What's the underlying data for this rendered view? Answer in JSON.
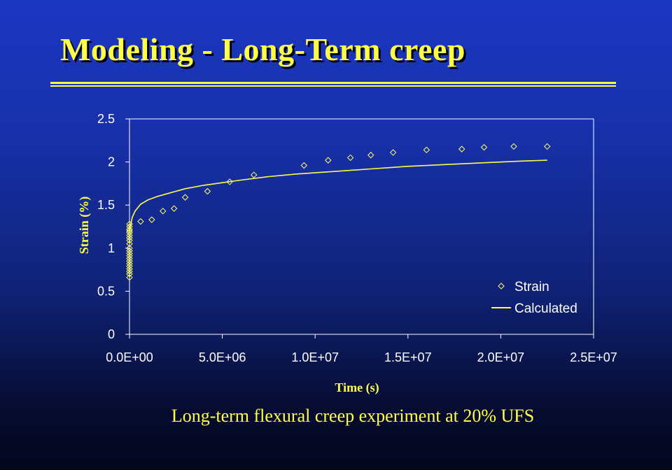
{
  "slide": {
    "title": "Modeling - Long-Term creep",
    "caption": "Long-term flexural creep experiment at 20% UFS"
  },
  "colors": {
    "title_text": "#ffff4a",
    "axis_text_color": "#ffffff",
    "axis_title_color": "#ffff4a",
    "marker_color": "#ffff66",
    "line_color": "#ffff4a",
    "frame_color": "#ffffff"
  },
  "chart_data": {
    "type": "scatter",
    "title": "",
    "xlabel": "Time (s)",
    "ylabel": "Strain (%)",
    "xlim": [
      0,
      25000000
    ],
    "ylim": [
      0,
      2.5
    ],
    "x_ticks": [
      "0.0E+00",
      "5.0E+06",
      "1.0E+07",
      "1.5E+07",
      "2.0E+07",
      "2.5E+07"
    ],
    "x_tick_values": [
      0,
      5000000,
      10000000,
      15000000,
      20000000,
      25000000
    ],
    "y_ticks": [
      "0",
      "0.5",
      "1",
      "1.5",
      "2",
      "2.5"
    ],
    "y_tick_values": [
      0,
      0.5,
      1,
      1.5,
      2,
      2.5
    ],
    "grid": false,
    "legend_position": "bottom-right",
    "series": [
      {
        "name": "Strain",
        "kind": "markers",
        "marker": "diamond",
        "points": [
          [
            0,
            0.66
          ],
          [
            0,
            0.7
          ],
          [
            0,
            0.73
          ],
          [
            0,
            0.76
          ],
          [
            0,
            0.79
          ],
          [
            0,
            0.82
          ],
          [
            0,
            0.85
          ],
          [
            0,
            0.88
          ],
          [
            0,
            0.91
          ],
          [
            0,
            0.94
          ],
          [
            0,
            0.97
          ],
          [
            0,
            1.0
          ],
          [
            0,
            1.05
          ],
          [
            0,
            1.09
          ],
          [
            0,
            1.12
          ],
          [
            0,
            1.15
          ],
          [
            0,
            1.18
          ],
          [
            0,
            1.2
          ],
          [
            0,
            1.22
          ],
          [
            0,
            1.25
          ],
          [
            0,
            1.28
          ],
          [
            600000,
            1.31
          ],
          [
            1200000,
            1.33
          ],
          [
            1800000,
            1.43
          ],
          [
            2400000,
            1.46
          ],
          [
            3000000,
            1.59
          ],
          [
            4200000,
            1.66
          ],
          [
            5400000,
            1.77
          ],
          [
            6700000,
            1.85
          ],
          [
            9400000,
            1.96
          ],
          [
            10700000,
            2.02
          ],
          [
            11900000,
            2.05
          ],
          [
            13000000,
            2.08
          ],
          [
            14200000,
            2.11
          ],
          [
            16000000,
            2.14
          ],
          [
            17900000,
            2.15
          ],
          [
            19100000,
            2.17
          ],
          [
            20700000,
            2.18
          ],
          [
            22500000,
            2.18
          ]
        ]
      },
      {
        "name": "Calculated",
        "kind": "line",
        "points": [
          [
            0,
            1.2
          ],
          [
            150000,
            1.36
          ],
          [
            300000,
            1.43
          ],
          [
            600000,
            1.51
          ],
          [
            1000000,
            1.56
          ],
          [
            1500000,
            1.6
          ],
          [
            2000000,
            1.63
          ],
          [
            3000000,
            1.69
          ],
          [
            4000000,
            1.73
          ],
          [
            5000000,
            1.76
          ],
          [
            6000000,
            1.79
          ],
          [
            7500000,
            1.83
          ],
          [
            9000000,
            1.86
          ],
          [
            11000000,
            1.89
          ],
          [
            13000000,
            1.92
          ],
          [
            15000000,
            1.95
          ],
          [
            17000000,
            1.97
          ],
          [
            19000000,
            1.99
          ],
          [
            21000000,
            2.01
          ],
          [
            22500000,
            2.02
          ]
        ]
      }
    ]
  }
}
